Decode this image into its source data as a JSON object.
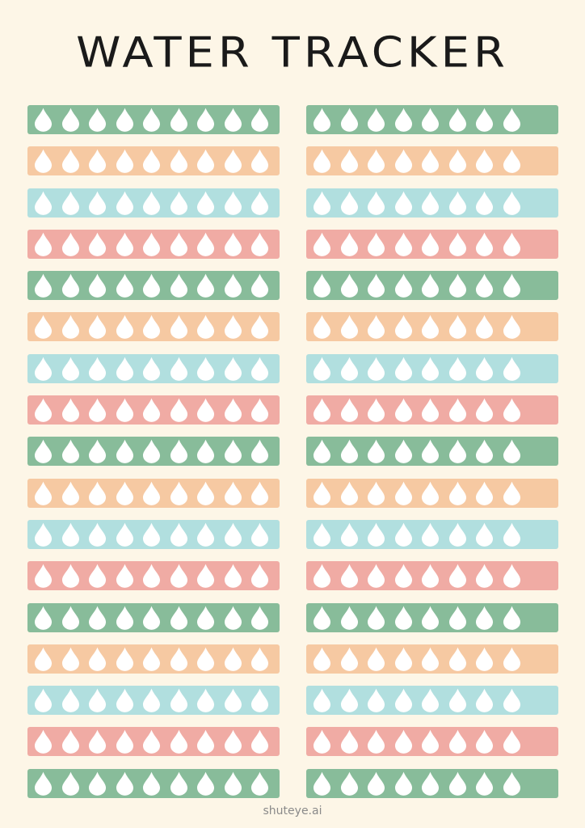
{
  "title": "WATER TRACKER",
  "footer": "shuteye.ai",
  "palette": [
    "#88bc9a",
    "#f6c9a2",
    "#b1dfdf",
    "#f0aba4"
  ],
  "drop_color": "#ffffff",
  "drop_icon": "water-drop-icon",
  "columns": [
    {
      "name": "left",
      "rows": 17,
      "drops_per_row": 9
    },
    {
      "name": "right",
      "rows": 17,
      "drops_per_row": 8
    }
  ]
}
